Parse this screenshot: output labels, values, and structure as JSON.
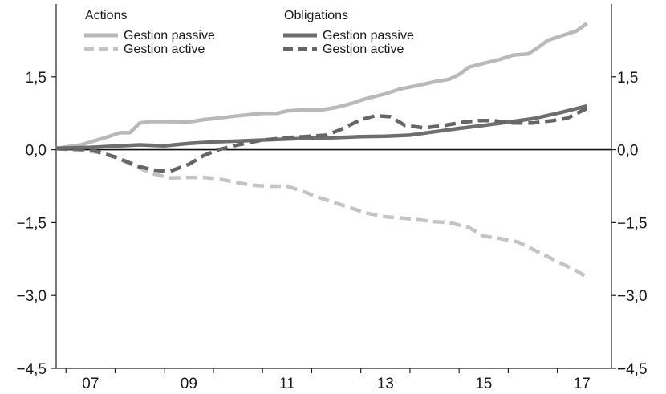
{
  "chart_data": {
    "type": "line",
    "ylim": [
      -4.5,
      3.0
    ],
    "xlim": [
      2006.3,
      2017.6
    ],
    "y_ticks": [
      {
        "value": 1.5,
        "label": "1,5"
      },
      {
        "value": 0.0,
        "label": "0,0"
      },
      {
        "value": -1.5,
        "label": "−1,5"
      },
      {
        "value": -3.0,
        "label": "−3,0"
      },
      {
        "value": -4.5,
        "label": "−4,5"
      }
    ],
    "x_ticks": [
      {
        "value": 2007,
        "label": "07"
      },
      {
        "value": 2009,
        "label": "09"
      },
      {
        "value": 2011,
        "label": "11"
      },
      {
        "value": 2013,
        "label": "13"
      },
      {
        "value": 2015,
        "label": "15"
      },
      {
        "value": 2017,
        "label": "17"
      }
    ],
    "grid": false,
    "zero_line": true,
    "legend": {
      "placement": "top",
      "groups": [
        {
          "title": "Actions",
          "entries": [
            "Gestion passive",
            "Gestion active"
          ]
        },
        {
          "title": "Obligations",
          "entries": [
            "Gestion passive",
            "Gestion active"
          ]
        }
      ]
    },
    "series": [
      {
        "name": "Gestion passive",
        "group": "Actions",
        "color": "#b9b9b9",
        "dash": "solid",
        "x": [
          2006.3,
          2006.8,
          2007.3,
          2007.6,
          2007.8,
          2008.0,
          2008.2,
          2008.6,
          2009.0,
          2009.3,
          2009.6,
          2010.0,
          2010.5,
          2010.8,
          2011.0,
          2011.3,
          2011.7,
          2012.0,
          2012.3,
          2012.6,
          2013.0,
          2013.3,
          2013.7,
          2014.0,
          2014.3,
          2014.5,
          2014.7,
          2015.0,
          2015.3,
          2015.6,
          2015.9,
          2016.1,
          2016.3,
          2016.6,
          2016.9,
          2017.1
        ],
        "y": [
          0.03,
          0.1,
          0.25,
          0.35,
          0.35,
          0.55,
          0.58,
          0.58,
          0.57,
          0.62,
          0.65,
          0.7,
          0.75,
          0.75,
          0.8,
          0.82,
          0.82,
          0.87,
          0.95,
          1.05,
          1.15,
          1.25,
          1.33,
          1.4,
          1.45,
          1.55,
          1.7,
          1.78,
          1.85,
          1.95,
          1.97,
          2.1,
          2.25,
          2.35,
          2.45,
          2.6
        ]
      },
      {
        "name": "Gestion active",
        "group": "Actions",
        "color": "#c4c4c4",
        "dash": "dashed",
        "x": [
          2006.3,
          2006.8,
          2007.3,
          2007.6,
          2008.0,
          2008.3,
          2008.6,
          2009.0,
          2009.3,
          2009.6,
          2010.0,
          2010.3,
          2010.6,
          2011.0,
          2011.3,
          2011.7,
          2012.0,
          2012.3,
          2012.6,
          2013.0,
          2013.5,
          2014.0,
          2014.3,
          2014.7,
          2015.0,
          2015.3,
          2015.7,
          2016.0,
          2016.3,
          2016.6,
          2016.9,
          2017.1
        ],
        "y": [
          0.02,
          0.0,
          -0.08,
          -0.2,
          -0.38,
          -0.5,
          -0.58,
          -0.57,
          -0.57,
          -0.6,
          -0.68,
          -0.73,
          -0.75,
          -0.75,
          -0.85,
          -1.0,
          -1.1,
          -1.2,
          -1.3,
          -1.38,
          -1.42,
          -1.48,
          -1.5,
          -1.6,
          -1.78,
          -1.82,
          -1.9,
          -2.05,
          -2.2,
          -2.35,
          -2.5,
          -2.62
        ]
      },
      {
        "name": "Gestion passive",
        "group": "Obligations",
        "color": "#6e6e6e",
        "dash": "solid",
        "x": [
          2006.3,
          2007.0,
          2008.0,
          2008.5,
          2009.0,
          2009.5,
          2010.0,
          2010.5,
          2011.0,
          2011.5,
          2012.0,
          2012.5,
          2013.0,
          2013.5,
          2014.0,
          2014.5,
          2015.0,
          2015.5,
          2016.0,
          2016.5,
          2017.1
        ],
        "y": [
          0.03,
          0.05,
          0.1,
          0.08,
          0.13,
          0.16,
          0.18,
          0.2,
          0.22,
          0.24,
          0.25,
          0.27,
          0.28,
          0.3,
          0.37,
          0.44,
          0.5,
          0.57,
          0.64,
          0.75,
          0.9
        ]
      },
      {
        "name": "Gestion active",
        "group": "Obligations",
        "color": "#666666",
        "dash": "dashed",
        "x": [
          2006.3,
          2007.0,
          2007.5,
          2008.0,
          2008.3,
          2008.6,
          2009.0,
          2009.3,
          2009.6,
          2010.0,
          2010.5,
          2011.0,
          2011.5,
          2011.8,
          2012.1,
          2012.5,
          2012.8,
          2013.1,
          2013.4,
          2013.8,
          2014.2,
          2014.6,
          2014.9,
          2015.2,
          2015.6,
          2016.0,
          2016.4,
          2016.7,
          2017.1
        ],
        "y": [
          0.02,
          0.0,
          -0.15,
          -0.35,
          -0.42,
          -0.45,
          -0.3,
          -0.12,
          0.0,
          0.1,
          0.2,
          0.25,
          0.28,
          0.3,
          0.42,
          0.62,
          0.7,
          0.68,
          0.5,
          0.45,
          0.5,
          0.57,
          0.6,
          0.6,
          0.55,
          0.55,
          0.6,
          0.65,
          0.85
        ]
      }
    ]
  }
}
